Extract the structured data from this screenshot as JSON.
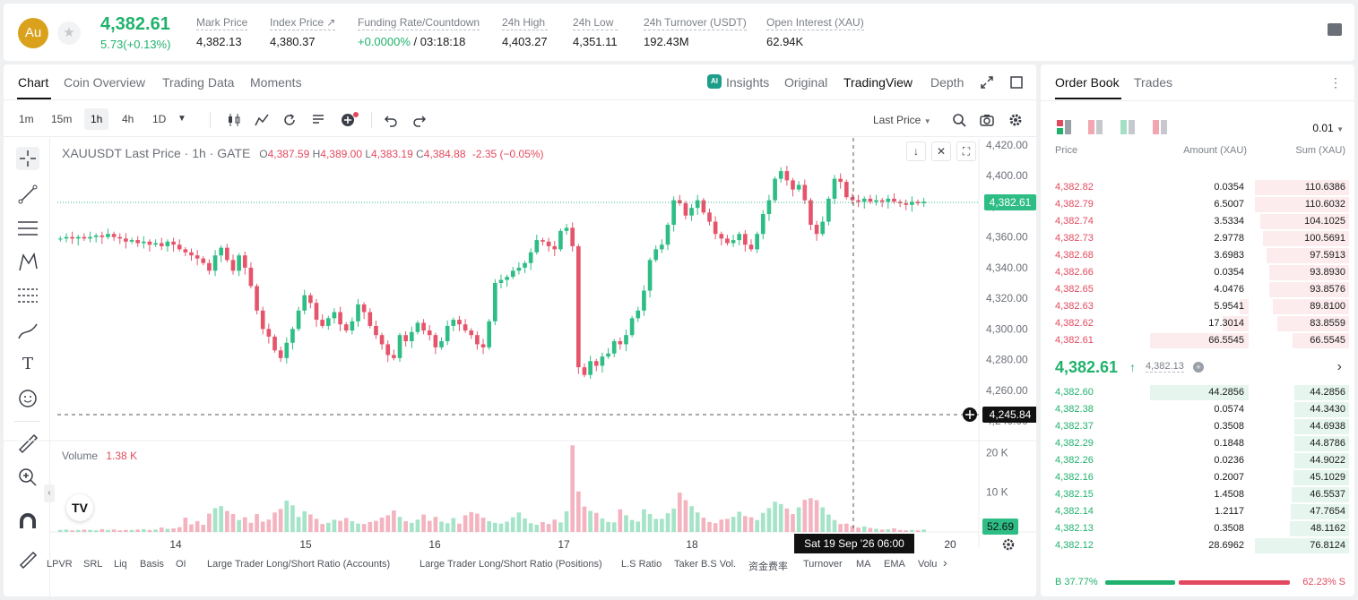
{
  "header": {
    "coin_symbol": "Au",
    "last_price": "4,382.61",
    "change": "5.73(+0.13%)",
    "stats": [
      {
        "label": "Mark Price",
        "value": "4,382.13"
      },
      {
        "label": "Index Price ↗",
        "value": "4,380.37"
      },
      {
        "label": "Funding Rate/Countdown",
        "value_green": "+0.0000%",
        "value": "/ 03:18:18"
      },
      {
        "label": "24h High",
        "value": "4,403.27"
      },
      {
        "label": "24h Low",
        "value": "4,351.11"
      },
      {
        "label": "24h Turnover (USDT)",
        "value": "192.43M"
      },
      {
        "label": "Open Interest (XAU)",
        "value": "62.94K"
      }
    ]
  },
  "chart_tabs": [
    "Chart",
    "Coin Overview",
    "Trading Data",
    "Moments"
  ],
  "view_tabs": [
    "Insights",
    "Original",
    "TradingView",
    "Depth"
  ],
  "ai_badge": "AI",
  "timeframes": [
    "1m",
    "15m",
    "1h",
    "4h",
    "1D"
  ],
  "selected_timeframe": "1h",
  "price_type": "Last Price",
  "legend": {
    "symbol": "XAUUSDT Last Price · 1h · GATE",
    "o_label": "O",
    "o": "4,387.59",
    "h_label": "H",
    "h": "4,389.00",
    "l_label": "L",
    "l": "4,383.19",
    "c_label": "C",
    "c": "4,384.88",
    "change": "-2.35 (−0.05%)"
  },
  "volume_label": "Volume",
  "volume_value": "1.38 K",
  "crosshair_price": "4,245.84",
  "crosshair_time": "Sat 19 Sep '26   06:00",
  "current_volume": "52.69",
  "bottom_tabs": [
    "LPVR",
    "SRL",
    "Liq",
    "Basis",
    "OI",
    "Large Trader Long/Short Ratio (Accounts)",
    "Large Trader Long/Short Ratio (Positions)",
    "L.S Ratio",
    "Taker B.S Vol.",
    "资金费率",
    "Turnover",
    "MA",
    "EMA",
    "Volu"
  ],
  "colors": {
    "up": "#20b26c",
    "down": "#e3495e",
    "up_candle": "#2ebd85",
    "down_candle": "#e5546b"
  },
  "chart_data": {
    "type": "candlestick",
    "symbol": "XAUUSDT",
    "interval": "1h",
    "ylim": [
      4240,
      4420
    ],
    "y_ticks": [
      "4,420.00",
      "4,400.00",
      "4,380.00",
      "4,360.00",
      "4,340.00",
      "4,320.00",
      "4,300.00",
      "4,280.00",
      "4,260.00",
      "4,240.00"
    ],
    "x_ticks": [
      "14",
      "15",
      "16",
      "17",
      "18",
      "20"
    ],
    "last_price": "4,382.61",
    "volume_ticks": [
      "20 K",
      "10 K"
    ],
    "price_series": [
      4359,
      4360,
      4359,
      4360,
      4359,
      4360,
      4361,
      4360,
      4362,
      4360,
      4359,
      4357,
      4358,
      4356,
      4357,
      4355,
      4356,
      4354,
      4357,
      4355,
      4352,
      4350,
      4348,
      4346,
      4343,
      4338,
      4348,
      4353,
      4345,
      4338,
      4348,
      4340,
      4328,
      4312,
      4300,
      4295,
      4286,
      4281,
      4291,
      4300,
      4312,
      4322,
      4317,
      4306,
      4302,
      4307,
      4311,
      4303,
      4299,
      4305,
      4316,
      4311,
      4302,
      4296,
      4290,
      4283,
      4281,
      4296,
      4292,
      4298,
      4304,
      4299,
      4296,
      4288,
      4292,
      4302,
      4306,
      4303,
      4299,
      4296,
      4290,
      4288,
      4305,
      4330,
      4332,
      4334,
      4338,
      4340,
      4343,
      4350,
      4358,
      4357,
      4354,
      4352,
      4364,
      4366,
      4354,
      4275,
      4270,
      4279,
      4276,
      4282,
      4284,
      4292,
      4290,
      4296,
      4307,
      4312,
      4325,
      4345,
      4352,
      4355,
      4368,
      4384,
      4382,
      4374,
      4379,
      4384,
      4376,
      4370,
      4362,
      4359,
      4356,
      4358,
      4362,
      4355,
      4352,
      4362,
      4375,
      4384,
      4398,
      4403,
      4397,
      4391,
      4394,
      4384,
      4368,
      4362,
      4370,
      4385,
      4398,
      4396,
      4386,
      4384,
      4383,
      4385,
      4383,
      4384,
      4383,
      4385,
      4383,
      4382,
      4381,
      4383,
      4382,
      4383
    ],
    "volume_series": [
      0.5,
      0.6,
      0.4,
      0.5,
      0.6,
      0.5,
      0.4,
      0.7,
      0.5,
      0.6,
      0.4,
      0.5,
      0.5,
      0.6,
      0.7,
      0.5,
      0.6,
      1.1,
      0.8,
      0.9,
      1.2,
      3.6,
      1.9,
      2.7,
      1.8,
      4.6,
      6.0,
      6.5,
      5.3,
      4.5,
      3.0,
      3.7,
      2.3,
      4.5,
      2.6,
      3.1,
      4.9,
      5.8,
      7.9,
      6.7,
      3.8,
      5.2,
      4.4,
      3.3,
      2.0,
      2.3,
      3.1,
      2.8,
      3.5,
      2.7,
      2.1,
      2.0,
      2.5,
      2.8,
      3.6,
      4.2,
      5.4,
      3.8,
      2.7,
      2.3,
      3.1,
      4.4,
      2.8,
      3.8,
      2.6,
      2.2,
      3.5,
      2.1,
      4.2,
      5.0,
      4.6,
      3.6,
      2.7,
      2.3,
      2.1,
      2.6,
      3.7,
      4.9,
      3.4,
      2.2,
      1.8,
      2.5,
      2.0,
      3.1,
      2.4,
      5.2,
      21.8,
      10.2,
      6.4,
      5.3,
      4.8,
      3.4,
      2.5,
      2.4,
      5.7,
      4.2,
      3.0,
      2.6,
      5.7,
      4.5,
      3.3,
      3.3,
      4.7,
      5.9,
      9.9,
      8.0,
      6.5,
      4.9,
      3.6,
      2.5,
      2.2,
      3.1,
      3.3,
      3.8,
      5.1,
      4.0,
      3.7,
      3.0,
      4.8,
      6.0,
      7.6,
      7.0,
      5.9,
      4.5,
      6.2,
      8.1,
      8.5,
      8.0,
      6.2,
      4.4,
      3.0,
      2.0,
      2.1,
      1.5,
      1.1,
      1.4,
      1.0,
      0.8,
      0.6,
      0.7,
      0.9,
      0.5,
      0.4,
      0.5,
      0.4,
      0.6
    ]
  },
  "orderbook": {
    "tabs": [
      "Order Book",
      "Trades"
    ],
    "precision": "0.01",
    "headers": [
      "Price",
      "Amount (XAU)",
      "Sum (XAU)"
    ],
    "asks": [
      {
        "price": "4,382.82",
        "amount": "0.0354",
        "sum": "110.6386",
        "amt_pct": 0.0,
        "sum_pct": 1.0
      },
      {
        "price": "4,382.79",
        "amount": "6.5007",
        "sum": "110.6032",
        "amt_pct": 0.0,
        "sum_pct": 1.0
      },
      {
        "price": "4,382.74",
        "amount": "3.5334",
        "sum": "104.1025",
        "amt_pct": 0.0,
        "sum_pct": 0.94
      },
      {
        "price": "4,382.73",
        "amount": "2.9778",
        "sum": "100.5691",
        "amt_pct": 0.0,
        "sum_pct": 0.91
      },
      {
        "price": "4,382.68",
        "amount": "3.6983",
        "sum": "97.5913",
        "amt_pct": 0.0,
        "sum_pct": 0.88
      },
      {
        "price": "4,382.66",
        "amount": "0.0354",
        "sum": "93.8930",
        "amt_pct": 0.0,
        "sum_pct": 0.85
      },
      {
        "price": "4,382.65",
        "amount": "4.0476",
        "sum": "93.8576",
        "amt_pct": 0.0,
        "sum_pct": 0.85
      },
      {
        "price": "4,382.63",
        "amount": "5.9541",
        "sum": "89.8100",
        "amt_pct": 0.09,
        "sum_pct": 0.81
      },
      {
        "price": "4,382.62",
        "amount": "17.3014",
        "sum": "83.8559",
        "amt_pct": 0.26,
        "sum_pct": 0.76
      },
      {
        "price": "4,382.61",
        "amount": "66.5545",
        "sum": "66.5545",
        "amt_pct": 1.0,
        "sum_pct": 0.6
      }
    ],
    "mid_price": "4,382.61",
    "mid_mark": "4,382.13",
    "bids": [
      {
        "price": "4,382.60",
        "amount": "44.2856",
        "sum": "44.2856",
        "amt_pct": 1.0,
        "sum_pct": 0.58
      },
      {
        "price": "4,382.38",
        "amount": "0.0574",
        "sum": "44.3430",
        "amt_pct": 0.0,
        "sum_pct": 0.58
      },
      {
        "price": "4,382.37",
        "amount": "0.3508",
        "sum": "44.6938",
        "amt_pct": 0.0,
        "sum_pct": 0.58
      },
      {
        "price": "4,382.29",
        "amount": "0.1848",
        "sum": "44.8786",
        "amt_pct": 0.0,
        "sum_pct": 0.58
      },
      {
        "price": "4,382.26",
        "amount": "0.0236",
        "sum": "44.9022",
        "amt_pct": 0.0,
        "sum_pct": 0.58
      },
      {
        "price": "4,382.16",
        "amount": "0.2007",
        "sum": "45.1029",
        "amt_pct": 0.0,
        "sum_pct": 0.59
      },
      {
        "price": "4,382.15",
        "amount": "1.4508",
        "sum": "46.5537",
        "amt_pct": 0.0,
        "sum_pct": 0.61
      },
      {
        "price": "4,382.14",
        "amount": "1.2117",
        "sum": "47.7654",
        "amt_pct": 0.0,
        "sum_pct": 0.62
      },
      {
        "price": "4,382.13",
        "amount": "0.3508",
        "sum": "48.1162",
        "amt_pct": 0.0,
        "sum_pct": 0.63
      },
      {
        "price": "4,382.12",
        "amount": "28.6962",
        "sum": "76.8124",
        "amt_pct": 0.0,
        "sum_pct": 1.0
      }
    ],
    "buy_ratio": "B 37.77%",
    "sell_ratio": "62.23% S",
    "buy_fraction": 0.3777
  }
}
